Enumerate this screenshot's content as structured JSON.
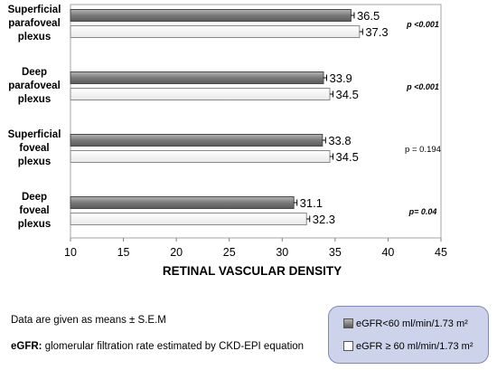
{
  "chart_data": {
    "type": "bar",
    "orientation": "horizontal",
    "categories": [
      [
        "Superficial",
        "parafoveal",
        "plexus"
      ],
      [
        "Deep",
        "parafoveal",
        "plexus"
      ],
      [
        "Superficial",
        "foveal",
        "plexus"
      ],
      [
        "Deep",
        "foveal",
        "plexus"
      ]
    ],
    "series": [
      {
        "name": "eGFR<60 ml/min/1.73 m²",
        "values": [
          36.5,
          33.9,
          33.8,
          31.1
        ],
        "color": "#8c8c8c"
      },
      {
        "name": "eGFR ≥ 60 ml/min/1.73 m²",
        "values": [
          37.3,
          34.5,
          34.5,
          32.3
        ],
        "color": "#ffffff"
      }
    ],
    "data_labels": [
      [
        "36.5",
        "33.9",
        "33.8",
        "31.1"
      ],
      [
        "37.3",
        "34.5",
        "34.5",
        "32.3"
      ]
    ],
    "p_values": [
      "p <0.001",
      "p <0.001",
      "p = 0.194",
      "p= 0.04"
    ],
    "p_values_bold": [
      true,
      true,
      false,
      true
    ],
    "xlabel": "RETINAL VASCULAR DENSITY",
    "xlim": [
      10,
      45
    ],
    "xticks": [
      "10",
      "15",
      "20",
      "25",
      "30",
      "35",
      "40",
      "45"
    ],
    "grid": false,
    "legend_position": "bottom-right"
  },
  "notes": {
    "line1": "Data are given as means ± S.E.M",
    "line2_bold": "eGFR:",
    "line2_rest": " glomerular filtration rate estimated by CKD-EPI equation"
  },
  "legend": {
    "item1": "eGFR<60 ml/min/1.73 m²",
    "item2": "eGFR ≥ 60 ml/min/1.73 m²"
  },
  "colors": {
    "series1": "#8c8c8c",
    "series2": "#ffffff",
    "legend_bg": "#cdd3ea"
  }
}
